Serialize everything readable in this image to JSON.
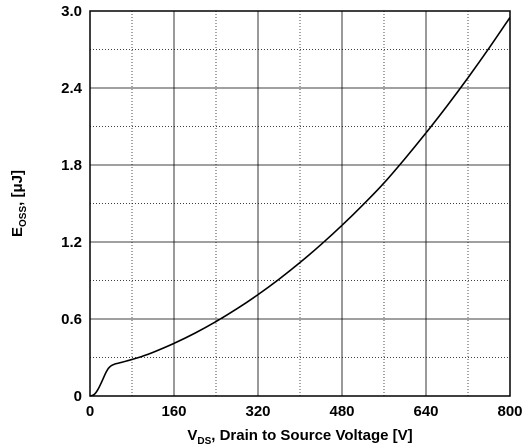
{
  "chart_data": {
    "type": "line",
    "title": "",
    "xlabel": {
      "prefix": "V",
      "subscript": "DS",
      "suffix": ", Drain to Source Voltage [V]"
    },
    "ylabel": {
      "prefix": "E",
      "subscript": "OSS",
      "suffix": ", [μJ]"
    },
    "xlim": [
      0,
      800
    ],
    "ylim": [
      0,
      3.0
    ],
    "x_ticks": [
      0,
      160,
      320,
      480,
      640,
      800
    ],
    "x_tick_labels": [
      "0",
      "160",
      "320",
      "480",
      "640",
      "800"
    ],
    "y_ticks": [
      0,
      0.6,
      1.2,
      1.8,
      2.4,
      3.0
    ],
    "y_tick_labels": [
      "0",
      "0.6",
      "1.2",
      "1.8",
      "2.4",
      "3.0"
    ],
    "grid": {
      "major_solid": true,
      "minor_dotted": true,
      "x_minor_step": 80,
      "y_minor_step": 0.3
    },
    "series": [
      {
        "color": "#000000",
        "x": [
          0,
          5,
          10,
          15,
          20,
          25,
          30,
          35,
          40,
          45,
          50,
          60,
          80,
          100,
          120,
          160,
          200,
          240,
          280,
          320,
          360,
          400,
          440,
          480,
          520,
          560,
          600,
          640,
          680,
          720,
          760,
          800
        ],
        "y": [
          0,
          0.005,
          0.02,
          0.05,
          0.09,
          0.135,
          0.18,
          0.215,
          0.235,
          0.245,
          0.252,
          0.262,
          0.285,
          0.31,
          0.34,
          0.41,
          0.49,
          0.58,
          0.68,
          0.79,
          0.91,
          1.04,
          1.18,
          1.33,
          1.49,
          1.66,
          1.85,
          2.05,
          2.26,
          2.48,
          2.71,
          2.95
        ]
      }
    ]
  }
}
